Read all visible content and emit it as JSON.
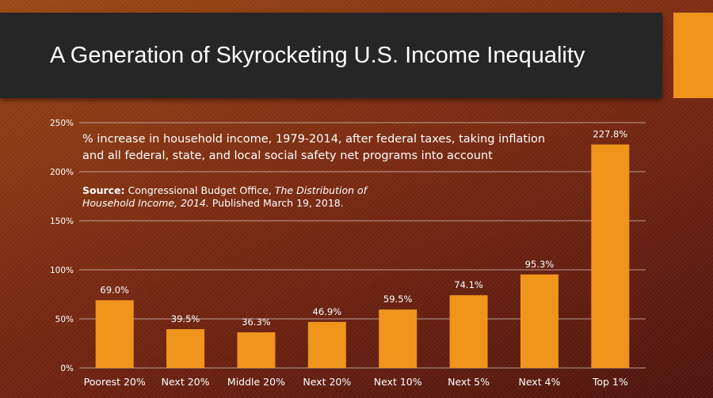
{
  "title": "A Generation of Skyrocketing U.S. Income Inequality",
  "caption": {
    "line1": "% increase in household income, 1979-2014, after federal taxes, taking inflation",
    "line2": "and all federal, state, and local social safety net programs into account"
  },
  "source": {
    "label": "Source:",
    "org": "Congressional Budget Office,",
    "pub_title_1": "The Distribution of",
    "pub_title_2": "Household Income, 2014.",
    "published": "Published March 19, 2018."
  },
  "colors": {
    "bar": "#f0951c",
    "accent": "#f0951c",
    "title_bar": "#262626"
  },
  "chart_data": {
    "type": "bar",
    "categories": [
      "Poorest 20%",
      "Next 20%",
      "Middle 20%",
      "Next 20%",
      "Next 10%",
      "Next 5%",
      "Next 4%",
      "Top 1%"
    ],
    "values": [
      69.0,
      39.5,
      36.3,
      46.9,
      59.5,
      74.1,
      95.3,
      227.8
    ],
    "value_labels": [
      "69.0%",
      "39.5%",
      "36.3%",
      "46.9%",
      "59.5%",
      "74.1%",
      "95.3%",
      "227.8%"
    ],
    "yticks": [
      0,
      50,
      100,
      150,
      200,
      250
    ],
    "ytick_labels": [
      "0%",
      "50%",
      "100%",
      "150%",
      "200%",
      "250%"
    ],
    "ylim": [
      0,
      250
    ],
    "grid": true,
    "legend": "none"
  }
}
